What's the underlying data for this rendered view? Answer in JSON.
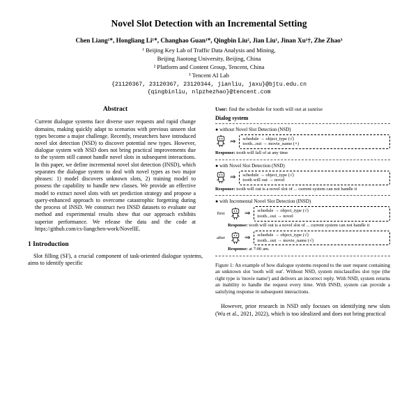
{
  "title": "Novel Slot Detection with an Incremental Setting",
  "authors": "Chen Liang¹*, Hongliang Li¹*, Changhao Guan¹*, Qingbin Liu², Jian Liu¹, Jinan Xu¹†, Zhe Zhao³",
  "affil1": "¹ Beijing Key Lab of Traffic Data Analysis and Mining,",
  "affil1b": "Beijing Jiaotong University, Beijing, China",
  "affil2": "² Platform and Content Group, Tencent, China",
  "affil3": "³ Tencent AI Lab",
  "emails1": "{21120367, 23120367, 23120344, jianliu, jaxu}@bjtu.edu.cn",
  "emails2": "{qingbinliu, nlpzhezhao}@tencent.com",
  "abs_head": "Abstract",
  "abstract": "Current dialogue systems face diverse user requests and rapid change domains, making quickly adapt to scenarios with previous unseen slot types become a major challenge. Recently, researchers have introduced novel slot detection (NSD) to discover potential new types. However, dialogue system with NSD does not bring practical improvements due to the system still cannot handle novel slots in subsequent interactions. In this paper, we define incremental novel slot detection (INSD), which separates the dialogue system to deal with novel types as two major phrases: 1) model discovers unknown slots, 2) training model to possess the capability to handle new classes. We provide an effective model to extract novel slots with set prediction strategy and propose a query-enhanced approach to overcome catastrophic forgetting during the process of INSD. We construct two INSD datasets to evaluate our method and experimental results show that our approach exhibits superior performance. We release the data and the code at https://github.com/cs-liangchen-work/NovelIE.",
  "sec1": "1   Introduction",
  "intro": "Slot filling (SF), a crucial component of task-oriented dialogue systems, aims to identify specific",
  "fig_user_label": "User:",
  "fig_user_text": "find the schedule for tooth will out at sunrise",
  "fig_sys": "Dialog system",
  "fb1_title": "● without Novel Slot Detection (NSD)",
  "fb1_box": "schedule → object_type (√)\ntooth...out → movie_name (×)",
  "fb1_resp_l": "Response:",
  "fb1_resp": " tooth will fall of at any time",
  "fb2_title": "● with Novel Slot Detection (NSD)",
  "fb2_box": "schedule → object_type (√)\ntooth will out → novel",
  "fb2_resp_l": "Response:",
  "fb2_resp": " tooth will out is a novel slot of ... current system can not handle it",
  "fb3_title": "● with Incremental Novel Slot Detection (INSD)",
  "fb3_first": "first",
  "fb3_box1": "schedule → object_type (√)\ntooth...out → novel",
  "fb3_resp1_l": "Response:",
  "fb3_resp1": " tooth will out is a novel slot of ... current system can not handle it",
  "fb3_after": "after",
  "fb3_box2": "schedule → object_type (√)\ntooth...out → movie_name (√)",
  "fb3_resp2_l": "Response:",
  "fb3_resp2": " at 7:00 am.",
  "fig_cap": "Figure 1: An example of how dialogue systems respond to the user request containing an unknown slot 'tooth will out'. Without NSD, system misclassifies slot type (the right type is 'movie name') and delivers an incorrect reply. With NSD, system returns an inability to handle the request every time. With INSD, system can provide a satisfying response in subsequent interactions.",
  "rc_para": "However, prior research in NSD only focuses on identifying new slots (Wu et al., 2021, 2022), which is too idealized and does not bring practical",
  "svg_robot": "<svg viewBox='0 0 20 22'><rect x='4' y='2' width='12' height='8' rx='2' fill='none' stroke='#000' stroke-width='1'/><circle cx='8' cy='6' r='1' fill='#000'/><circle cx='12' cy='6' r='1' fill='#000'/><line x1='10' y1='0' x2='10' y2='2' stroke='#000'/><circle cx='10' cy='0' r='0.8' fill='#000'/><rect x='6' y='10' width='8' height='8' rx='1' fill='none' stroke='#000' stroke-width='1'/><line x1='6' y1='13' x2='3' y2='16' stroke='#000'/><line x1='14' y1='13' x2='17' y2='16' stroke='#000'/><line x1='8' y1='18' x2='8' y2='21' stroke='#000'/><line x1='12' y1='18' x2='12' y2='21' stroke='#000'/></svg>"
}
